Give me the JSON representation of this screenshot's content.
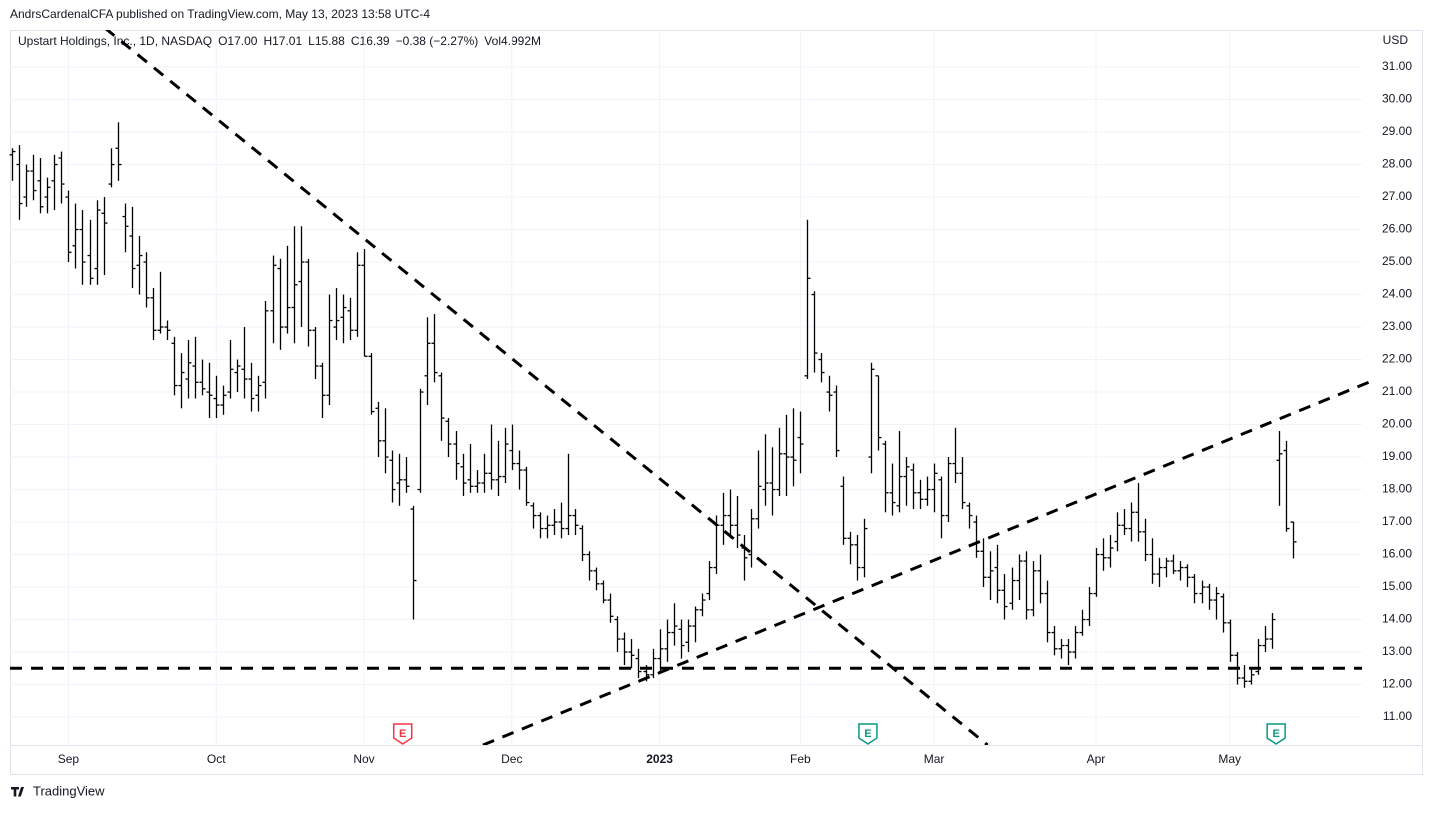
{
  "header": {
    "publisher": "AndrsCardenalCFA published on TradingView.com, May 13, 2023 13:58 UTC-4",
    "footer": "TradingView"
  },
  "chart_data": {
    "type": "ohlc",
    "title": "Upstart Holdings, Inc., 1D, NASDAQ",
    "legend": [
      "O17.00",
      "H17.01",
      "L15.88",
      "C16.39",
      "−0.38 (−2.27%)",
      "Vol4.992M"
    ],
    "y_unit": "USD",
    "color": "#000000",
    "grid": true,
    "xlim": [
      -0.3,
      191.8
    ],
    "ylim": [
      10.14,
      32.14
    ],
    "yticks": [
      {
        "value": 11,
        "label": "11.00"
      },
      {
        "value": 12,
        "label": "12.00"
      },
      {
        "value": 13,
        "label": "13.00"
      },
      {
        "value": 14,
        "label": "14.00"
      },
      {
        "value": 15,
        "label": "15.00"
      },
      {
        "value": 16,
        "label": "16.00"
      },
      {
        "value": 17,
        "label": "17.00"
      },
      {
        "value": 18,
        "label": "18.00"
      },
      {
        "value": 19,
        "label": "19.00"
      },
      {
        "value": 20,
        "label": "20.00"
      },
      {
        "value": 21,
        "label": "21.00"
      },
      {
        "value": 22,
        "label": "22.00"
      },
      {
        "value": 23,
        "label": "23.00"
      },
      {
        "value": 24,
        "label": "24.00"
      },
      {
        "value": 25,
        "label": "25.00"
      },
      {
        "value": 26,
        "label": "26.00"
      },
      {
        "value": 27,
        "label": "27.00"
      },
      {
        "value": 28,
        "label": "28.00"
      },
      {
        "value": 29,
        "label": "29.00"
      },
      {
        "value": 30,
        "label": "30.00"
      },
      {
        "value": 31,
        "label": "31.00"
      }
    ],
    "xticks": [
      {
        "value": 8,
        "label": "Sep"
      },
      {
        "value": 29,
        "label": "Oct"
      },
      {
        "value": 50,
        "label": "Nov"
      },
      {
        "value": 71,
        "label": "Dec"
      },
      {
        "value": 92,
        "label": "2023"
      },
      {
        "value": 112,
        "label": "Feb"
      },
      {
        "value": 131,
        "label": "Mar"
      },
      {
        "value": 154,
        "label": "Apr"
      },
      {
        "value": 173,
        "label": "May"
      }
    ],
    "ohlc": [
      [
        28.3,
        28.5,
        27.5,
        28.4
      ],
      [
        28.0,
        28.6,
        26.3,
        26.8
      ],
      [
        27.0,
        28.0,
        26.7,
        27.8
      ],
      [
        27.8,
        28.3,
        26.9,
        27.2
      ],
      [
        27.5,
        28.2,
        26.5,
        26.7
      ],
      [
        27.0,
        27.6,
        26.5,
        27.3
      ],
      [
        27.5,
        28.3,
        26.6,
        28.0
      ],
      [
        28.2,
        28.4,
        26.8,
        27.4
      ],
      [
        27.0,
        27.2,
        25.0,
        25.3
      ],
      [
        25.5,
        26.8,
        24.8,
        26.0
      ],
      [
        26.0,
        26.6,
        24.3,
        25.0
      ],
      [
        25.2,
        26.3,
        24.3,
        24.5
      ],
      [
        24.8,
        26.9,
        24.3,
        26.6
      ],
      [
        26.5,
        27.0,
        24.6,
        26.2
      ],
      [
        27.4,
        28.5,
        27.3,
        28.0
      ],
      [
        28.5,
        29.3,
        27.5,
        28.0
      ],
      [
        26.4,
        26.8,
        25.3,
        26.1
      ],
      [
        25.8,
        26.7,
        24.2,
        24.8
      ],
      [
        24.9,
        25.8,
        24.0,
        25.2
      ],
      [
        25.0,
        25.3,
        23.6,
        23.9
      ],
      [
        23.9,
        24.2,
        22.6,
        22.9
      ],
      [
        22.9,
        24.7,
        22.8,
        23.0
      ],
      [
        23.0,
        23.2,
        22.6,
        22.9
      ],
      [
        22.5,
        22.7,
        20.9,
        21.2
      ],
      [
        21.2,
        22.2,
        20.5,
        21.6
      ],
      [
        21.4,
        22.6,
        20.8,
        21.9
      ],
      [
        21.8,
        22.7,
        20.8,
        21.3
      ],
      [
        21.3,
        22.0,
        20.9,
        21.1
      ],
      [
        21.0,
        21.9,
        20.2,
        20.9
      ],
      [
        20.8,
        21.5,
        20.2,
        20.6
      ],
      [
        20.6,
        21.2,
        20.3,
        20.9
      ],
      [
        21.0,
        22.6,
        20.8,
        21.7
      ],
      [
        21.6,
        22.0,
        21.0,
        21.8
      ],
      [
        21.7,
        23.0,
        20.8,
        21.4
      ],
      [
        21.4,
        21.9,
        20.4,
        20.8
      ],
      [
        20.9,
        21.5,
        20.4,
        21.2
      ],
      [
        21.3,
        23.8,
        20.8,
        23.5
      ],
      [
        23.5,
        25.2,
        22.5,
        24.9
      ],
      [
        24.8,
        25.1,
        22.3,
        23.0
      ],
      [
        23.0,
        25.5,
        22.8,
        23.6
      ],
      [
        23.6,
        26.1,
        22.5,
        24.3
      ],
      [
        24.4,
        26.1,
        23.0,
        25.0
      ],
      [
        25.0,
        25.1,
        22.4,
        22.9
      ],
      [
        22.9,
        23.0,
        21.4,
        21.8
      ],
      [
        21.8,
        21.9,
        20.2,
        20.9
      ],
      [
        20.9,
        24.0,
        20.6,
        23.2
      ],
      [
        23.0,
        24.2,
        22.6,
        23.2
      ],
      [
        23.3,
        24.0,
        22.5,
        23.6
      ],
      [
        23.5,
        23.9,
        22.6,
        22.9
      ],
      [
        22.9,
        25.3,
        22.7,
        24.9
      ],
      [
        24.9,
        25.4,
        22.1,
        22.1
      ],
      [
        22.1,
        22.2,
        20.3,
        20.4
      ],
      [
        20.5,
        20.7,
        19.0,
        19.5
      ],
      [
        19.5,
        20.5,
        18.5,
        19.0
      ],
      [
        18.9,
        19.2,
        17.6,
        18.0
      ],
      [
        18.2,
        19.1,
        17.5,
        18.3
      ],
      [
        18.3,
        19.0,
        17.9,
        18.1
      ],
      [
        17.4,
        17.5,
        14.0,
        15.2
      ],
      [
        18.0,
        21.1,
        17.9,
        21.0
      ],
      [
        21.5,
        23.3,
        20.6,
        22.5
      ],
      [
        22.5,
        23.4,
        21.3,
        21.6
      ],
      [
        21.5,
        21.6,
        19.5,
        20.2
      ],
      [
        20.1,
        20.2,
        19.0,
        19.4
      ],
      [
        19.4,
        19.8,
        18.3,
        18.8
      ],
      [
        18.7,
        19.1,
        17.8,
        18.2
      ],
      [
        18.3,
        19.4,
        17.9,
        18.1
      ],
      [
        18.1,
        18.6,
        17.9,
        18.2
      ],
      [
        18.2,
        19.1,
        17.9,
        18.5
      ],
      [
        18.5,
        20.0,
        18.0,
        18.3
      ],
      [
        18.3,
        19.5,
        17.8,
        18.4
      ],
      [
        18.4,
        19.9,
        18.2,
        19.4
      ],
      [
        19.2,
        20.0,
        18.6,
        18.8
      ],
      [
        18.8,
        19.2,
        18.0,
        18.6
      ],
      [
        18.6,
        18.7,
        17.5,
        17.6
      ],
      [
        17.5,
        17.6,
        16.8,
        17.2
      ],
      [
        17.2,
        17.3,
        16.5,
        16.8
      ],
      [
        16.8,
        17.2,
        16.5,
        16.9
      ],
      [
        16.9,
        17.4,
        16.6,
        17.0
      ],
      [
        17.0,
        17.6,
        16.5,
        16.8
      ],
      [
        16.8,
        19.1,
        16.6,
        17.2
      ],
      [
        17.2,
        17.4,
        16.6,
        16.9
      ],
      [
        16.8,
        16.9,
        15.8,
        16.0
      ],
      [
        16.0,
        16.1,
        15.2,
        15.5
      ],
      [
        15.5,
        15.6,
        14.9,
        15.1
      ],
      [
        15.1,
        15.2,
        14.5,
        14.6
      ],
      [
        14.6,
        14.8,
        13.9,
        14.1
      ],
      [
        14.0,
        14.1,
        13.0,
        13.4
      ],
      [
        13.4,
        13.6,
        12.6,
        13.0
      ],
      [
        13.0,
        13.4,
        12.5,
        12.9
      ],
      [
        12.8,
        13.1,
        12.2,
        12.4
      ],
      [
        12.4,
        12.6,
        12.1,
        12.3
      ],
      [
        12.3,
        13.1,
        12.2,
        12.8
      ],
      [
        12.8,
        13.7,
        12.4,
        13.1
      ],
      [
        13.1,
        14.0,
        12.7,
        13.6
      ],
      [
        13.6,
        14.5,
        13.2,
        13.8
      ],
      [
        13.7,
        14.0,
        12.8,
        13.2
      ],
      [
        13.3,
        14.0,
        13.0,
        13.8
      ],
      [
        13.8,
        14.4,
        13.3,
        14.3
      ],
      [
        14.3,
        14.8,
        14.1,
        14.6
      ],
      [
        14.8,
        15.8,
        14.6,
        15.6
      ],
      [
        15.6,
        17.2,
        15.4,
        16.9
      ],
      [
        16.9,
        17.9,
        16.3,
        17.2
      ],
      [
        17.2,
        18.0,
        16.5,
        16.9
      ],
      [
        16.9,
        17.8,
        16.2,
        16.6
      ],
      [
        16.2,
        16.6,
        15.2,
        15.9
      ],
      [
        16.0,
        17.4,
        15.6,
        17.1
      ],
      [
        17.1,
        19.2,
        16.8,
        18.1
      ],
      [
        18.0,
        19.7,
        17.5,
        18.2
      ],
      [
        18.2,
        19.3,
        17.2,
        18.0
      ],
      [
        18.0,
        19.9,
        17.8,
        19.1
      ],
      [
        19.1,
        20.3,
        17.8,
        19.0
      ],
      [
        19.0,
        20.5,
        18.1,
        18.9
      ],
      [
        19.6,
        20.4,
        18.5,
        19.4
      ],
      [
        21.5,
        26.3,
        21.4,
        24.5
      ],
      [
        24.0,
        24.1,
        21.6,
        22.2
      ],
      [
        22.0,
        22.2,
        21.3,
        21.6
      ],
      [
        21.0,
        21.5,
        20.4,
        20.9
      ],
      [
        21.0,
        21.2,
        19.0,
        19.2
      ],
      [
        18.1,
        18.4,
        16.3,
        16.5
      ],
      [
        16.5,
        16.7,
        15.7,
        16.3
      ],
      [
        16.3,
        16.6,
        15.2,
        15.6
      ],
      [
        15.6,
        17.1,
        15.3,
        16.8
      ],
      [
        19.0,
        21.9,
        18.5,
        21.7
      ],
      [
        21.5,
        21.5,
        19.2,
        19.6
      ],
      [
        19.4,
        19.5,
        17.3,
        17.9
      ],
      [
        17.9,
        18.8,
        17.2,
        17.6
      ],
      [
        17.5,
        19.8,
        17.3,
        18.4
      ],
      [
        18.4,
        19.0,
        17.5,
        18.7
      ],
      [
        18.6,
        18.8,
        17.4,
        17.9
      ],
      [
        17.9,
        18.3,
        17.4,
        17.7
      ],
      [
        17.7,
        18.4,
        17.5,
        18.0
      ],
      [
        18.0,
        18.8,
        17.3,
        18.5
      ],
      [
        18.3,
        18.4,
        16.5,
        17.2
      ],
      [
        17.2,
        19.0,
        17.0,
        18.8
      ],
      [
        18.8,
        19.9,
        18.2,
        18.5
      ],
      [
        18.5,
        19.0,
        17.4,
        17.6
      ],
      [
        17.5,
        17.6,
        16.8,
        17.2
      ],
      [
        17.0,
        17.2,
        15.9,
        16.1
      ],
      [
        16.1,
        16.5,
        15.0,
        15.3
      ],
      [
        15.3,
        16.1,
        14.6,
        15.5
      ],
      [
        15.6,
        16.3,
        14.5,
        14.9
      ],
      [
        14.9,
        15.4,
        14.0,
        14.4
      ],
      [
        14.5,
        15.6,
        14.3,
        15.2
      ],
      [
        15.2,
        16.0,
        14.6,
        15.8
      ],
      [
        15.8,
        16.1,
        14.0,
        14.3
      ],
      [
        14.3,
        15.8,
        14.1,
        15.5
      ],
      [
        15.5,
        16.0,
        14.5,
        14.8
      ],
      [
        14.8,
        15.2,
        13.3,
        13.6
      ],
      [
        13.6,
        13.8,
        12.9,
        13.1
      ],
      [
        13.1,
        13.4,
        12.8,
        13.2
      ],
      [
        13.2,
        13.4,
        12.6,
        13.0
      ],
      [
        13.0,
        13.8,
        12.8,
        13.6
      ],
      [
        13.6,
        14.3,
        13.5,
        14.0
      ],
      [
        14.0,
        15.0,
        13.8,
        14.8
      ],
      [
        14.8,
        16.2,
        14.7,
        16.0
      ],
      [
        16.0,
        16.5,
        15.5,
        15.9
      ],
      [
        15.9,
        16.6,
        15.6,
        16.2
      ],
      [
        16.4,
        17.3,
        16.1,
        16.9
      ],
      [
        16.9,
        17.4,
        16.6,
        16.8
      ],
      [
        16.8,
        17.6,
        16.4,
        17.3
      ],
      [
        17.3,
        18.2,
        16.4,
        16.7
      ],
      [
        16.7,
        17.1,
        15.8,
        16.0
      ],
      [
        16.0,
        16.5,
        15.1,
        15.4
      ],
      [
        15.4,
        15.9,
        15.0,
        15.6
      ],
      [
        15.6,
        15.9,
        15.3,
        15.8
      ],
      [
        15.8,
        16.0,
        15.4,
        15.5
      ],
      [
        15.5,
        15.8,
        15.2,
        15.6
      ],
      [
        15.6,
        15.7,
        15.0,
        15.3
      ],
      [
        15.3,
        15.4,
        14.5,
        14.8
      ],
      [
        14.8,
        15.2,
        14.5,
        15.0
      ],
      [
        15.0,
        15.1,
        14.3,
        14.6
      ],
      [
        14.6,
        15.0,
        14.0,
        14.8
      ],
      [
        14.7,
        14.8,
        13.6,
        13.9
      ],
      [
        13.9,
        14.0,
        12.7,
        12.9
      ],
      [
        12.9,
        13.0,
        12.0,
        12.2
      ],
      [
        12.2,
        12.6,
        11.9,
        12.1
      ],
      [
        12.1,
        12.5,
        12.0,
        12.3
      ],
      [
        12.4,
        13.4,
        12.3,
        13.2
      ],
      [
        13.2,
        13.8,
        13.0,
        13.4
      ],
      [
        13.4,
        14.2,
        13.1,
        14.0
      ],
      [
        18.9,
        19.8,
        17.5,
        19.1
      ],
      [
        19.2,
        19.5,
        16.7,
        16.8
      ],
      [
        17.0,
        17.01,
        15.88,
        16.39
      ]
    ],
    "trendlines": [
      {
        "x": [
          13.2,
          138.6
        ],
        "y": [
          32.2,
          10.14
        ]
      },
      {
        "x": [
          66.9,
          193.2
        ],
        "y": [
          10.14,
          21.34
        ]
      },
      {
        "x": [
          -0.3,
          191.8
        ],
        "y": [
          12.5,
          12.5
        ]
      }
    ],
    "events": [
      {
        "x": 55.5,
        "label": "E",
        "color": "#f23645"
      },
      {
        "x": 121.6,
        "label": "E",
        "color": "#089981"
      },
      {
        "x": 179.6,
        "label": "E",
        "color": "#089981"
      }
    ]
  }
}
